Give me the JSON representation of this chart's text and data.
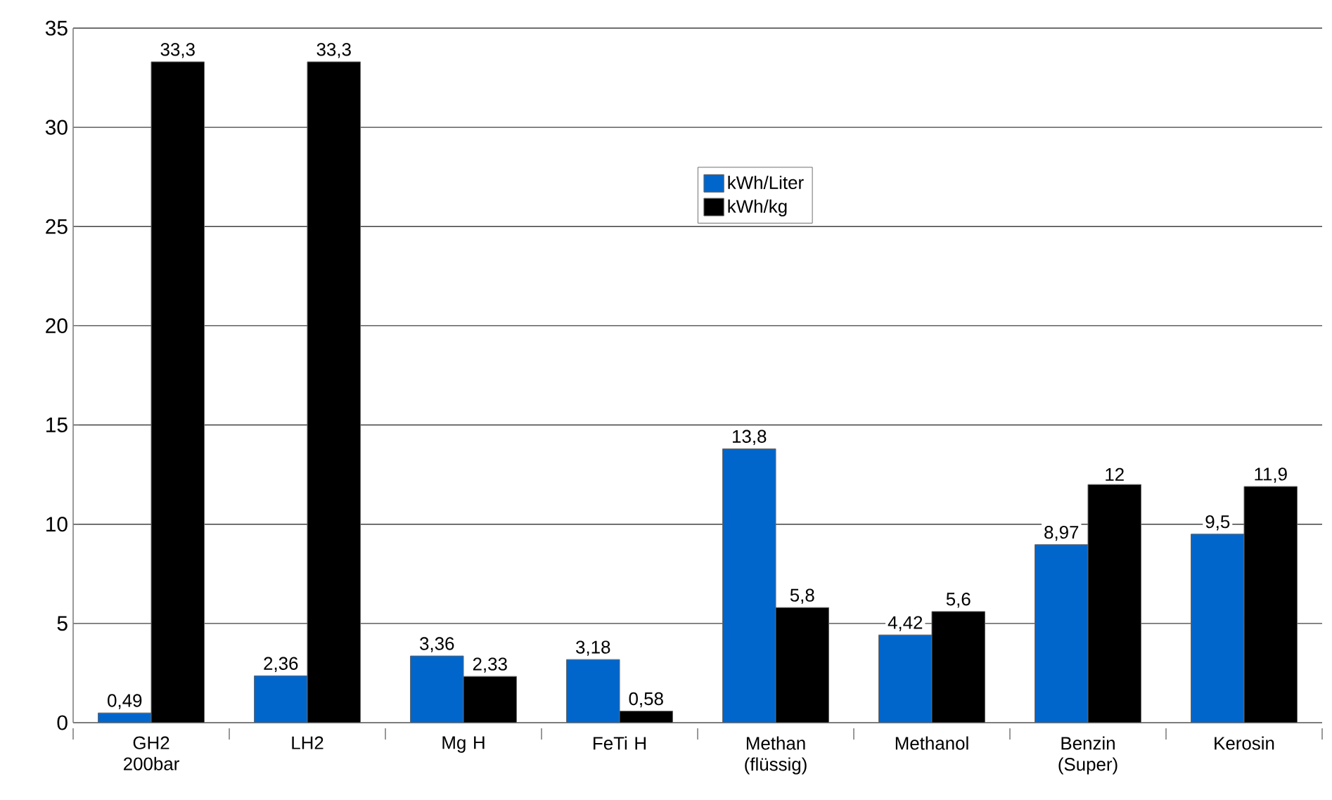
{
  "chart_data": {
    "type": "bar",
    "categories": [
      "GH2 200bar",
      "LH2",
      "Mg H",
      "FeTi H",
      "Methan (flüssig)",
      "Methanol",
      "Benzin (Super)",
      "Kerosin"
    ],
    "series": [
      {
        "name": "kWh/Liter",
        "color": "#0066cc",
        "values": [
          0.49,
          2.36,
          3.36,
          3.18,
          13.8,
          4.42,
          8.97,
          9.5
        ],
        "value_labels": [
          "0,49",
          "2,36",
          "3,36",
          "3,18",
          "13,8",
          "4,42",
          "8,97",
          "9,5"
        ]
      },
      {
        "name": "kWh/kg",
        "color": "#000000",
        "values": [
          33.3,
          33.3,
          2.33,
          0.58,
          5.8,
          5.6,
          12,
          11.9
        ],
        "value_labels": [
          "33,3",
          "33,3",
          "2,33",
          "0,58",
          "5,8",
          "5,6",
          "12",
          "11,9"
        ]
      }
    ],
    "ylim": [
      0,
      35
    ],
    "yticks": [
      0,
      5,
      10,
      15,
      20,
      25,
      30,
      35
    ],
    "grid": "y",
    "legend": "top"
  }
}
